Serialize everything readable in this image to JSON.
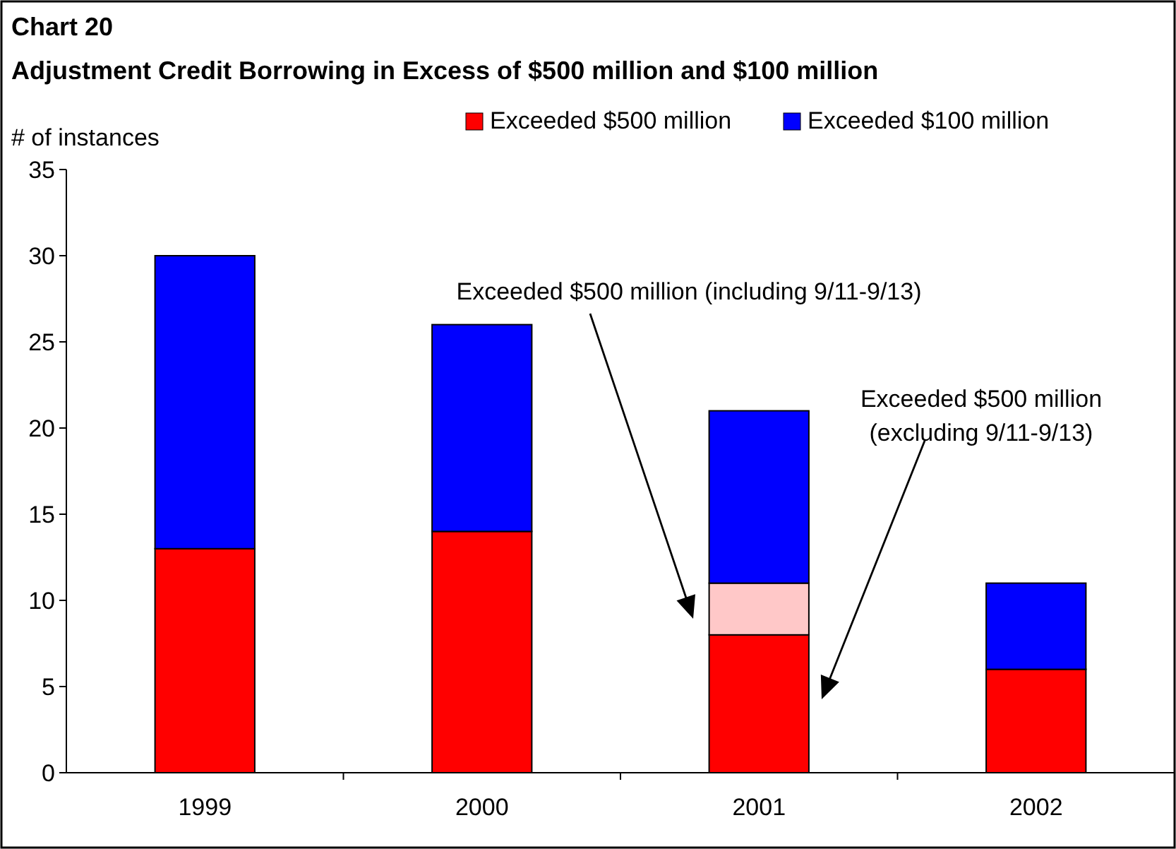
{
  "chart_data": {
    "type": "bar",
    "title": "Chart 20",
    "subtitle": "Adjustment Credit Borrowing in Excess of $500 million and $100 million",
    "ylabel": "# of instances",
    "categories": [
      "1999",
      "2000",
      "2001",
      "2002"
    ],
    "stacked": true,
    "series": [
      {
        "name": "Exceeded $500 million",
        "color": "#ff0000",
        "values": [
          13,
          14,
          8,
          6
        ]
      },
      {
        "color": "#ffc8c8",
        "values": [
          null,
          null,
          3,
          null
        ]
      },
      {
        "name": "Exceeded $100 million",
        "color": "#0000ff",
        "values": [
          17,
          12,
          10,
          5
        ]
      }
    ],
    "ylim": [
      0,
      35
    ],
    "yticks": [
      0,
      5,
      10,
      15,
      20,
      25,
      30,
      35
    ],
    "grid": false,
    "legend": "top right",
    "annotations": [
      "Exceeded $500 million (including 9/11-9/13)",
      "Exceeded $500 million (excluding 9/11-9/13)"
    ]
  }
}
